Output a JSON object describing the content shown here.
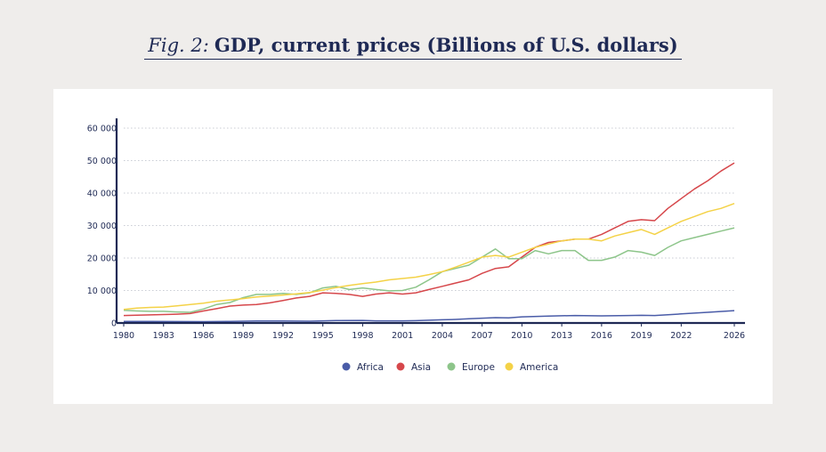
{
  "header": {
    "fig_label": "Fig. 2:",
    "title": "GDP, current prices (Billions of U.S. dollars)"
  },
  "chart_data": {
    "type": "line",
    "title": "GDP, current prices (Billions of U.S. dollars)",
    "xlabel": "",
    "ylabel": "",
    "xlim": [
      1980,
      2026
    ],
    "ylim": [
      0,
      60000
    ],
    "yticks": [
      0,
      10000,
      20000,
      30000,
      40000,
      50000,
      60000
    ],
    "ytick_labels": [
      "0",
      "10 000",
      "20 000",
      "30 000",
      "40 000",
      "50 000",
      "60 000"
    ],
    "xticks": [
      1980,
      1983,
      1986,
      1989,
      1992,
      1995,
      1998,
      2001,
      2004,
      2007,
      2010,
      2013,
      2016,
      2019,
      2022,
      2026
    ],
    "xtick_labels": [
      "1980",
      "1983",
      "1986",
      "1989",
      "1992",
      "1995",
      "1998",
      "2001",
      "2004",
      "2007",
      "2010",
      "2013",
      "2016",
      "2019",
      "2022",
      "2026"
    ],
    "grid": "horizontal-dotted",
    "legend_position": "bottom-center",
    "series": [
      {
        "name": "Africa",
        "color": "#4a5ca8",
        "points": [
          [
            1980,
            500
          ],
          [
            1982,
            500
          ],
          [
            1984,
            450
          ],
          [
            1986,
            400
          ],
          [
            1988,
            500
          ],
          [
            1990,
            600
          ],
          [
            1992,
            600
          ],
          [
            1994,
            550
          ],
          [
            1996,
            750
          ],
          [
            1998,
            800
          ],
          [
            1999,
            650
          ],
          [
            2001,
            650
          ],
          [
            2002,
            700
          ],
          [
            2004,
            1000
          ],
          [
            2005,
            1100
          ],
          [
            2006,
            1300
          ],
          [
            2008,
            1650
          ],
          [
            2009,
            1600
          ],
          [
            2010,
            1900
          ],
          [
            2012,
            2150
          ],
          [
            2014,
            2300
          ],
          [
            2016,
            2200
          ],
          [
            2018,
            2300
          ],
          [
            2019,
            2350
          ],
          [
            2020,
            2300
          ],
          [
            2022,
            2800
          ],
          [
            2024,
            3300
          ],
          [
            2026,
            3800
          ]
        ]
      },
      {
        "name": "Asia",
        "color": "#d6474b",
        "points": [
          [
            1980,
            2300
          ],
          [
            1982,
            2500
          ],
          [
            1984,
            2700
          ],
          [
            1985,
            2900
          ],
          [
            1986,
            3700
          ],
          [
            1987,
            4400
          ],
          [
            1988,
            5200
          ],
          [
            1989,
            5500
          ],
          [
            1990,
            5700
          ],
          [
            1991,
            6200
          ],
          [
            1992,
            6900
          ],
          [
            1993,
            7700
          ],
          [
            1994,
            8200
          ],
          [
            1995,
            9300
          ],
          [
            1996,
            9100
          ],
          [
            1997,
            8800
          ],
          [
            1998,
            8200
          ],
          [
            1999,
            8900
          ],
          [
            2000,
            9300
          ],
          [
            2001,
            8900
          ],
          [
            2002,
            9300
          ],
          [
            2003,
            10300
          ],
          [
            2004,
            11300
          ],
          [
            2005,
            12300
          ],
          [
            2006,
            13300
          ],
          [
            2007,
            15300
          ],
          [
            2008,
            16800
          ],
          [
            2009,
            17300
          ],
          [
            2010,
            20300
          ],
          [
            2011,
            23300
          ],
          [
            2012,
            24800
          ],
          [
            2013,
            25300
          ],
          [
            2014,
            25800
          ],
          [
            2015,
            25800
          ],
          [
            2016,
            27300
          ],
          [
            2017,
            29300
          ],
          [
            2018,
            31300
          ],
          [
            2019,
            31800
          ],
          [
            2020,
            31500
          ],
          [
            2021,
            35300
          ],
          [
            2022,
            38300
          ],
          [
            2023,
            41300
          ],
          [
            2024,
            43800
          ],
          [
            2025,
            46800
          ],
          [
            2026,
            49300
          ]
        ]
      },
      {
        "name": "Europe",
        "color": "#8dc58a",
        "points": [
          [
            1980,
            3900
          ],
          [
            1981,
            3700
          ],
          [
            1982,
            3600
          ],
          [
            1983,
            3600
          ],
          [
            1984,
            3400
          ],
          [
            1985,
            3300
          ],
          [
            1986,
            4300
          ],
          [
            1987,
            5700
          ],
          [
            1988,
            6300
          ],
          [
            1989,
            7800
          ],
          [
            1990,
            8800
          ],
          [
            1991,
            8800
          ],
          [
            1992,
            9100
          ],
          [
            1993,
            8800
          ],
          [
            1994,
            9300
          ],
          [
            1995,
            10800
          ],
          [
            1996,
            11300
          ],
          [
            1997,
            10300
          ],
          [
            1998,
            10800
          ],
          [
            1999,
            10300
          ],
          [
            2000,
            9900
          ],
          [
            2001,
            10000
          ],
          [
            2002,
            11000
          ],
          [
            2003,
            13300
          ],
          [
            2004,
            15800
          ],
          [
            2005,
            16800
          ],
          [
            2006,
            17800
          ],
          [
            2007,
            20300
          ],
          [
            2008,
            22800
          ],
          [
            2009,
            19800
          ],
          [
            2010,
            19800
          ],
          [
            2011,
            22300
          ],
          [
            2012,
            21300
          ],
          [
            2013,
            22300
          ],
          [
            2014,
            22300
          ],
          [
            2015,
            19300
          ],
          [
            2016,
            19300
          ],
          [
            2017,
            20300
          ],
          [
            2018,
            22300
          ],
          [
            2019,
            21800
          ],
          [
            2020,
            20800
          ],
          [
            2021,
            23300
          ],
          [
            2022,
            25300
          ],
          [
            2023,
            26300
          ],
          [
            2024,
            27300
          ],
          [
            2025,
            28300
          ],
          [
            2026,
            29300
          ]
        ]
      },
      {
        "name": "America",
        "color": "#f4d247",
        "points": [
          [
            1980,
            4200
          ],
          [
            1981,
            4600
          ],
          [
            1982,
            4800
          ],
          [
            1983,
            4900
          ],
          [
            1984,
            5300
          ],
          [
            1985,
            5700
          ],
          [
            1986,
            6100
          ],
          [
            1987,
            6700
          ],
          [
            1988,
            7100
          ],
          [
            1989,
            7500
          ],
          [
            1990,
            8000
          ],
          [
            1991,
            8300
          ],
          [
            1992,
            8600
          ],
          [
            1993,
            9000
          ],
          [
            1994,
            9400
          ],
          [
            1995,
            10100
          ],
          [
            1996,
            10900
          ],
          [
            1997,
            11600
          ],
          [
            1998,
            12100
          ],
          [
            1999,
            12600
          ],
          [
            2000,
            13300
          ],
          [
            2001,
            13700
          ],
          [
            2002,
            14100
          ],
          [
            2003,
            14900
          ],
          [
            2004,
            15800
          ],
          [
            2005,
            17200
          ],
          [
            2006,
            18700
          ],
          [
            2007,
            20300
          ],
          [
            2008,
            20800
          ],
          [
            2009,
            20300
          ],
          [
            2010,
            21800
          ],
          [
            2011,
            23300
          ],
          [
            2012,
            24300
          ],
          [
            2013,
            25300
          ],
          [
            2014,
            25800
          ],
          [
            2015,
            25800
          ],
          [
            2016,
            25300
          ],
          [
            2017,
            26800
          ],
          [
            2018,
            27800
          ],
          [
            2019,
            28800
          ],
          [
            2020,
            27300
          ],
          [
            2021,
            29300
          ],
          [
            2022,
            31300
          ],
          [
            2023,
            32800
          ],
          [
            2024,
            34300
          ],
          [
            2025,
            35300
          ],
          [
            2026,
            36800
          ]
        ]
      }
    ]
  }
}
